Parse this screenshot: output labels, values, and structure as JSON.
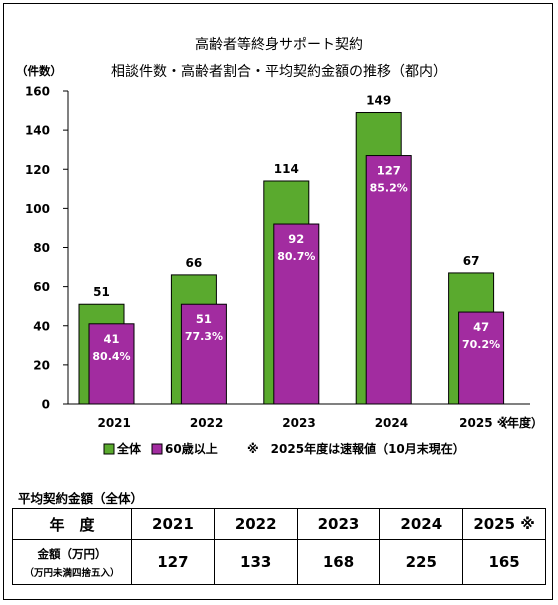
{
  "title_line1": "高齢者等終身サポート契約",
  "title_line2": "相談件数・高齢者割合・平均契約金額の推移（都内）",
  "y_unit": "（件数）",
  "x_unit": "（年度）",
  "legend": {
    "total": "全体",
    "over60": "60歳以上",
    "note": "※　2025年度は速報値（10月末現在）"
  },
  "chart_data": {
    "type": "bar",
    "categories": [
      "2021",
      "2022",
      "2023",
      "2024",
      "2025 ※"
    ],
    "series": [
      {
        "name": "全体",
        "values": [
          51,
          66,
          114,
          149,
          67
        ],
        "color": "#5aaa2e"
      },
      {
        "name": "60歳以上",
        "values": [
          41,
          51,
          92,
          127,
          47
        ],
        "color": "#a22ca0",
        "percent_labels": [
          "80.4%",
          "77.3%",
          "80.7%",
          "85.2%",
          "70.2%"
        ]
      }
    ],
    "ylim": [
      0,
      160
    ],
    "yticks": [
      0,
      20,
      40,
      60,
      80,
      100,
      120,
      140,
      160
    ],
    "grid": false,
    "legend_position": "bottom"
  },
  "table": {
    "title": "平均契約金額（全体）",
    "header_label": "年　度",
    "row_label": "金額（万円）",
    "row_sublabel": "（万円未満四捨五入）",
    "years": [
      "2021",
      "2022",
      "2023",
      "2024",
      "2025 ※"
    ],
    "amounts": [
      "127",
      "133",
      "168",
      "225",
      "165"
    ]
  }
}
